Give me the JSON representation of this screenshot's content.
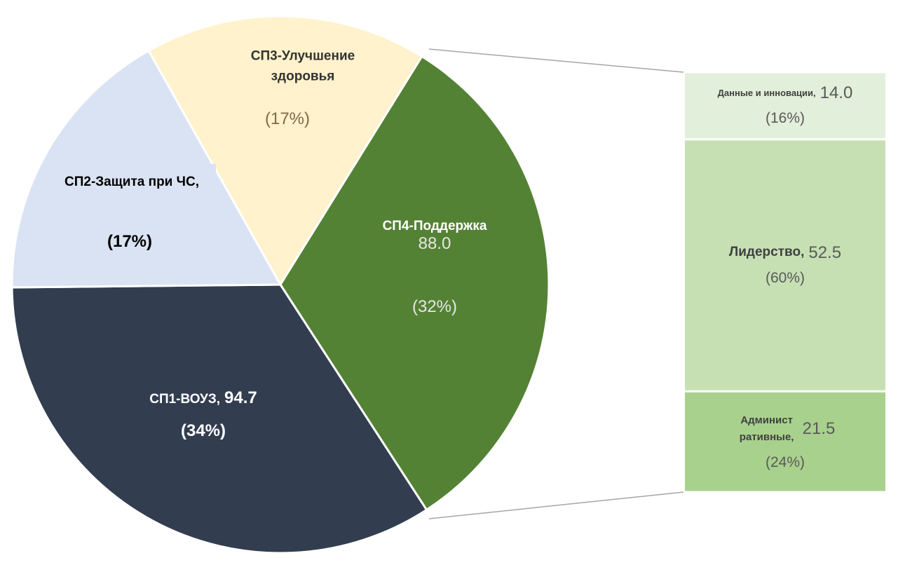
{
  "chart_data": [
    {
      "type": "pie",
      "categories": [
        "СП1-ВОУЗ,",
        "СП2-Защита при ЧС,",
        "СП3-Улучшение здоровья",
        "СП4-Поддержка"
      ],
      "values": [
        34,
        17,
        17,
        32
      ],
      "value_labels": [
        "(34%)",
        "(17%)",
        "(17%)",
        "(32%)"
      ],
      "amounts": [
        94.7,
        null,
        null,
        88.0
      ],
      "amount_labels": [
        "94.7",
        null,
        null,
        "88.0"
      ],
      "colors": [
        "#333d50",
        "#dae3f3",
        "#fff2cc",
        "#548235"
      ]
    },
    {
      "type": "stacked-column",
      "categories": [
        "Данные и инновации,",
        "Лидерство,",
        "Админист ративные,"
      ],
      "values": [
        16,
        60,
        24
      ],
      "value_labels": [
        "(16%)",
        "(60%)",
        "(24%)"
      ],
      "amounts": [
        14.0,
        52.5,
        21.5
      ],
      "amount_labels": [
        "14.0",
        "52.5",
        "21.5"
      ],
      "colors": [
        "#e2efda",
        "#c6e0b4",
        "#a9d18e"
      ]
    }
  ]
}
